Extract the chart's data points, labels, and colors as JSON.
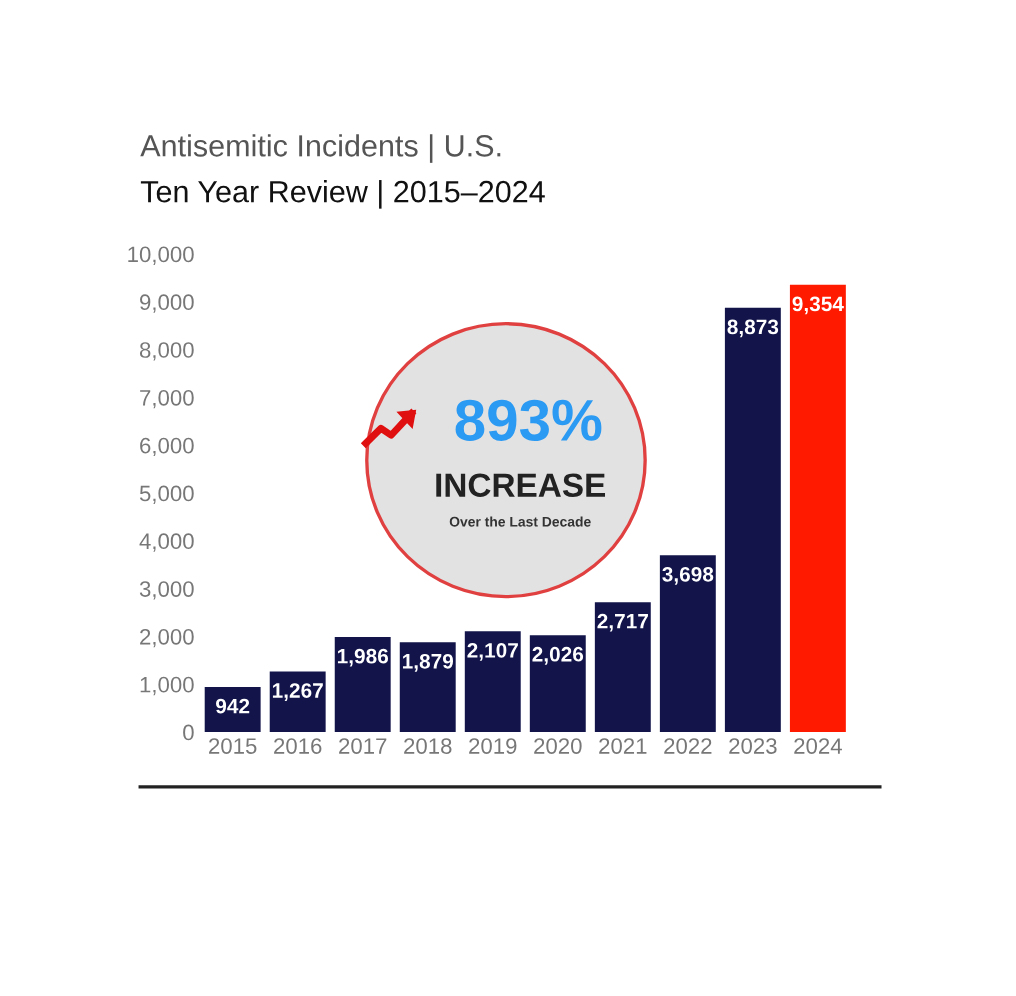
{
  "chart_data": {
    "type": "bar",
    "title": "Antisemitic Incidents | U.S.",
    "subtitle": "Ten Year Review | 2015–2024",
    "categories": [
      "2015",
      "2016",
      "2017",
      "2018",
      "2019",
      "2020",
      "2021",
      "2022",
      "2023",
      "2024"
    ],
    "values": [
      942,
      1267,
      1986,
      1879,
      2107,
      2026,
      2717,
      3698,
      8873,
      9354
    ],
    "colors": [
      "#12144a",
      "#12144a",
      "#12144a",
      "#12144a",
      "#12144a",
      "#12144a",
      "#12144a",
      "#12144a",
      "#12144a",
      "#ff1a00"
    ],
    "ylim": [
      0,
      10000
    ],
    "yticks": [
      {
        "value": 0,
        "label": "0"
      },
      {
        "value": 1000,
        "label": "1,000"
      },
      {
        "value": 2000,
        "label": "2,000"
      },
      {
        "value": 3000,
        "label": "3,000"
      },
      {
        "value": 4000,
        "label": "4,000"
      },
      {
        "value": 5000,
        "label": "5,000"
      },
      {
        "value": 6000,
        "label": "6,000"
      },
      {
        "value": 7000,
        "label": "7,000"
      },
      {
        "value": 8000,
        "label": "8,000"
      },
      {
        "value": 9000,
        "label": "9,000"
      },
      {
        "value": 10000,
        "label": "10,000"
      }
    ],
    "value_labels": [
      "942",
      "1,267",
      "1,986",
      "1,879",
      "2,107",
      "2,026",
      "2,717",
      "3,698",
      "8,873",
      "9,354"
    ],
    "annotations": [
      "893%",
      "INCREASE",
      "Over the Last Decade"
    ],
    "grid": false,
    "legend": false
  }
}
